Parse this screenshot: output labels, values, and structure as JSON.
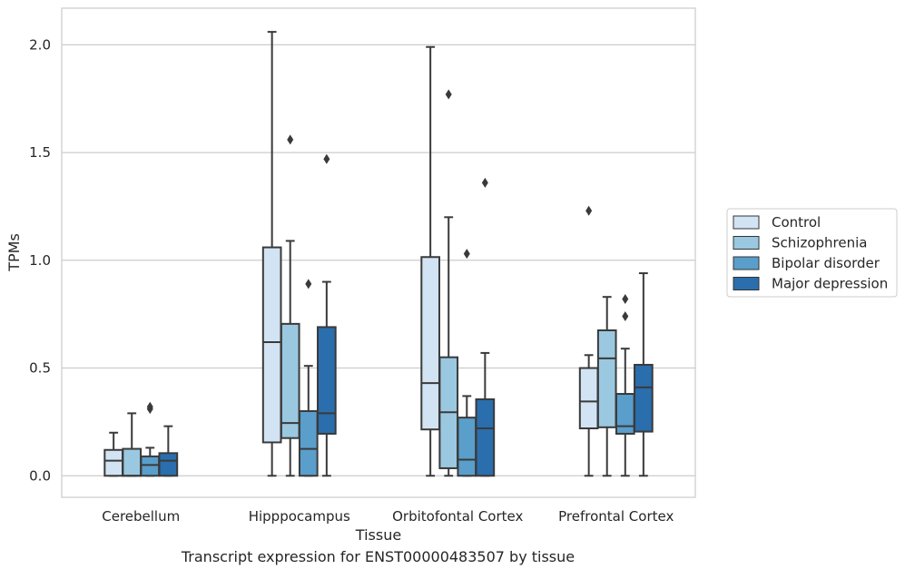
{
  "chart_data": {
    "type": "boxplot",
    "xlabel": "Tissue",
    "ylabel": "TPMs",
    "caption": "Transcript expression for ENST00000483507 by tissue",
    "ylim": [
      -0.1,
      2.17
    ],
    "yticks": [
      0.0,
      0.5,
      1.0,
      1.5,
      2.0
    ],
    "ytick_labels": [
      "0.0",
      "0.5",
      "1.0",
      "1.5",
      "2.0"
    ],
    "grid": true,
    "legend_position": "right",
    "categories": [
      "Cerebellum",
      "Hipppocampus",
      "Orbitofontal Cortex",
      "Prefrontal Cortex"
    ],
    "series": [
      {
        "name": "Control",
        "color": "#d2e3f3",
        "boxes": [
          {
            "whislo": 0.0,
            "q1": 0.0,
            "med": 0.07,
            "q3": 0.12,
            "whishi": 0.2,
            "fliers": []
          },
          {
            "whislo": 0.0,
            "q1": 0.155,
            "med": 0.62,
            "q3": 1.06,
            "whishi": 2.06,
            "fliers": []
          },
          {
            "whislo": 0.0,
            "q1": 0.215,
            "med": 0.43,
            "q3": 1.015,
            "whishi": 1.99,
            "fliers": []
          },
          {
            "whislo": 0.0,
            "q1": 0.22,
            "med": 0.345,
            "q3": 0.5,
            "whishi": 0.56,
            "fliers": [
              1.23
            ]
          }
        ]
      },
      {
        "name": "Schizophrenia",
        "color": "#9ac8e0",
        "boxes": [
          {
            "whislo": 0.0,
            "q1": 0.0,
            "med": 0.0,
            "q3": 0.125,
            "whishi": 0.29,
            "fliers": []
          },
          {
            "whislo": 0.0,
            "q1": 0.175,
            "med": 0.245,
            "q3": 0.705,
            "whishi": 1.09,
            "fliers": [
              1.56
            ]
          },
          {
            "whislo": 0.0,
            "q1": 0.035,
            "med": 0.295,
            "q3": 0.55,
            "whishi": 1.2,
            "fliers": [
              1.77
            ]
          },
          {
            "whislo": 0.0,
            "q1": 0.225,
            "med": 0.545,
            "q3": 0.675,
            "whishi": 0.83,
            "fliers": []
          }
        ]
      },
      {
        "name": "Bipolar disorder",
        "color": "#5a9ecb",
        "boxes": [
          {
            "whislo": 0.0,
            "q1": 0.0,
            "med": 0.05,
            "q3": 0.09,
            "whishi": 0.13,
            "fliers": [
              0.31,
              0.32
            ]
          },
          {
            "whislo": 0.0,
            "q1": 0.0,
            "med": 0.125,
            "q3": 0.3,
            "whishi": 0.51,
            "fliers": [
              0.89
            ]
          },
          {
            "whislo": 0.0,
            "q1": 0.0,
            "med": 0.075,
            "q3": 0.27,
            "whishi": 0.37,
            "fliers": [
              1.03
            ]
          },
          {
            "whislo": 0.0,
            "q1": 0.195,
            "med": 0.23,
            "q3": 0.38,
            "whishi": 0.59,
            "fliers": [
              0.74,
              0.82
            ]
          }
        ]
      },
      {
        "name": "Major depression",
        "color": "#2a6ead",
        "boxes": [
          {
            "whislo": 0.0,
            "q1": 0.0,
            "med": 0.07,
            "q3": 0.105,
            "whishi": 0.23,
            "fliers": []
          },
          {
            "whislo": 0.0,
            "q1": 0.195,
            "med": 0.29,
            "q3": 0.69,
            "whishi": 0.9,
            "fliers": [
              1.47
            ]
          },
          {
            "whislo": 0.0,
            "q1": 0.0,
            "med": 0.22,
            "q3": 0.355,
            "whishi": 0.57,
            "fliers": [
              1.36
            ]
          },
          {
            "whislo": 0.0,
            "q1": 0.205,
            "med": 0.41,
            "q3": 0.515,
            "whishi": 0.94,
            "fliers": []
          }
        ]
      }
    ]
  }
}
